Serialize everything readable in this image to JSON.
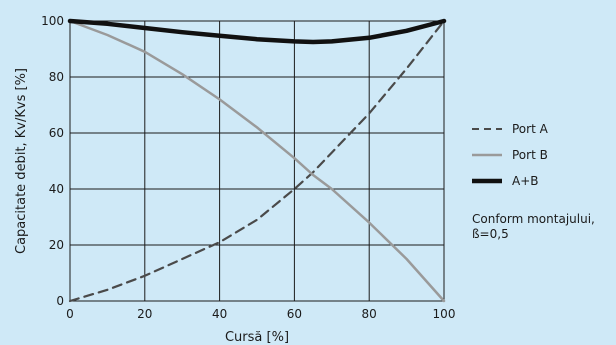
{
  "chart_data": {
    "type": "line",
    "xlabel": "Cursă [%]",
    "ylabel": "Capacitate debit, Kv/Kvs [%]",
    "xlim": [
      0,
      100
    ],
    "ylim": [
      0,
      100
    ],
    "x_ticks": [
      0,
      20,
      40,
      60,
      80,
      100
    ],
    "y_ticks": [
      0,
      20,
      40,
      60,
      80,
      100
    ],
    "grid": true,
    "legend_position": "right",
    "series": [
      {
        "name": "Port A",
        "style": "dashed",
        "color": "#4a4a4a",
        "x": [
          0,
          10,
          20,
          30,
          40,
          50,
          60,
          65,
          70,
          80,
          90,
          100
        ],
        "y": [
          0,
          4,
          9,
          15,
          21,
          29,
          40,
          46,
          53,
          67,
          83,
          100
        ]
      },
      {
        "name": "Port B",
        "style": "solid",
        "color": "#9a9a9a",
        "x": [
          0,
          10,
          20,
          30,
          40,
          50,
          60,
          65,
          70,
          80,
          90,
          100
        ],
        "y": [
          100,
          95,
          89,
          81,
          72,
          62,
          51,
          45,
          40,
          28,
          15,
          0
        ]
      },
      {
        "name": "A+B",
        "style": "solid-thick",
        "color": "#111111",
        "x": [
          0,
          10,
          20,
          30,
          40,
          50,
          60,
          65,
          70,
          80,
          90,
          100
        ],
        "y": [
          100,
          99,
          97.5,
          96,
          94.7,
          93.5,
          92.7,
          92.5,
          92.7,
          94,
          96.5,
          100
        ]
      }
    ],
    "note": "Conform montajului,\nß=0,5"
  }
}
